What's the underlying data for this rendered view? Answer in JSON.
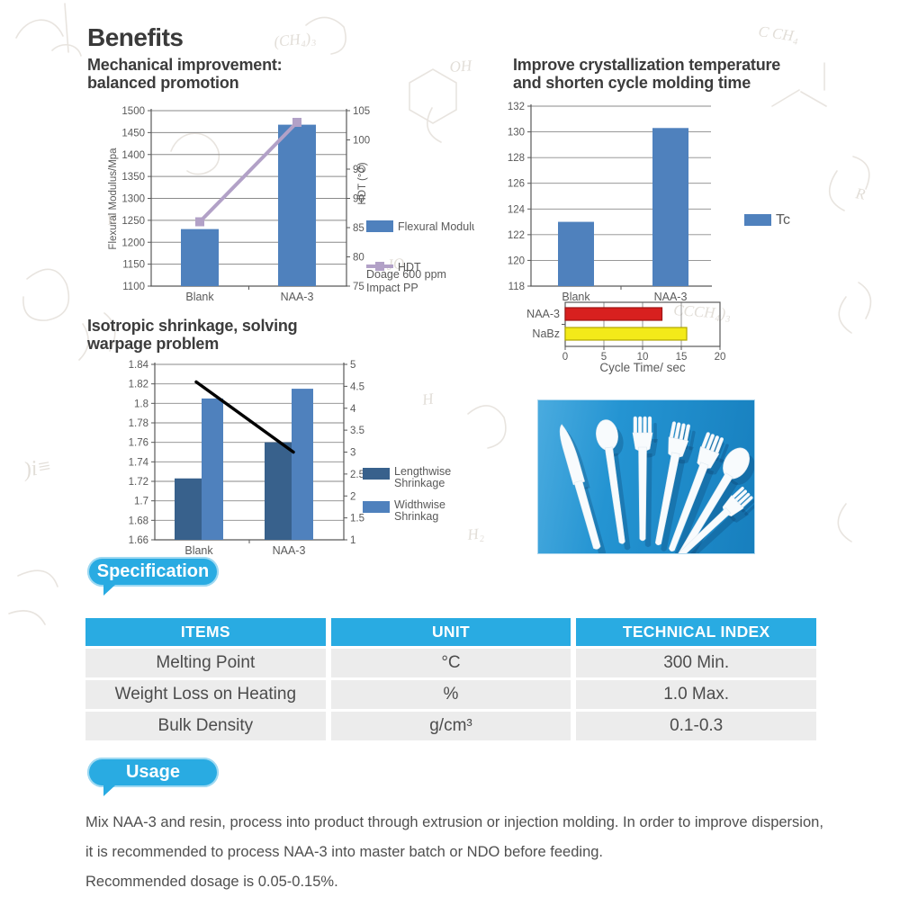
{
  "headings": {
    "benefits": "Benefits",
    "mech": [
      "Mechanical improvement:",
      "balanced promotion"
    ],
    "crystal": [
      "Improve crystallization temperature",
      "and shorten cycle molding time"
    ],
    "shrink": [
      "Isotropic shrinkage, solving",
      "warpage problem"
    ]
  },
  "colors": {
    "accent_cyan": "#29abe2",
    "bar_blue": "#4f81bd",
    "bar_dark_blue": "#38618c",
    "hdt_purple": "#b2a1c7",
    "red_bar": "#d8201f",
    "yellow_bar": "#f3ea19",
    "photo_blue": "#2191cf",
    "axis_gray": "#595959",
    "grid_gray": "#8a8a8a"
  },
  "chart_data": [
    {
      "id": "flexural",
      "type": "bar",
      "categories": [
        "Blank",
        "NAA-3"
      ],
      "bar_series": [
        {
          "name": "Flexural Modulus",
          "values": [
            1230,
            1468
          ],
          "color": "#4f81bd"
        }
      ],
      "line_series": [
        {
          "name": "HDT",
          "values": [
            86,
            103
          ],
          "axis": "right",
          "color": "#b2a1c7",
          "markers": true
        }
      ],
      "ylabel_left": "Flexural Modulus/Mpa",
      "ylabel_right": "HDT (°C)",
      "ylim_left": [
        1100,
        1500
      ],
      "ystep_left": 50,
      "ylim_right": [
        75,
        105
      ],
      "ystep_right": 5,
      "legend_note": [
        "Doage 600 ppm",
        "Impact PP"
      ],
      "grid": true,
      "legend_position": "right"
    },
    {
      "id": "tc",
      "type": "bar",
      "categories": [
        "Blank",
        "NAA-3"
      ],
      "bar_series": [
        {
          "name": "Tc",
          "values": [
            123,
            130.3
          ],
          "color": "#4f81bd"
        }
      ],
      "ylim_left": [
        118,
        132
      ],
      "ystep_left": 2,
      "grid": true,
      "legend_position": "right"
    },
    {
      "id": "shrinkage",
      "type": "bar",
      "categories": [
        "Blank",
        "NAA-3"
      ],
      "bar_series": [
        {
          "name": "Lengthwise Shrinkage",
          "values": [
            1.723,
            1.76
          ],
          "color": "#38618c"
        },
        {
          "name": "Widthwise Shrinkag",
          "values": [
            1.805,
            1.815
          ],
          "color": "#4f81bd"
        }
      ],
      "line_series": [
        {
          "name": "trend",
          "values": [
            4.6,
            3.0
          ],
          "axis": "right",
          "color": "#000000",
          "markers": false
        }
      ],
      "ylim_left": [
        1.66,
        1.84
      ],
      "ystep_left": 0.02,
      "ylim_right": [
        1,
        5
      ],
      "ystep_right": 0.5,
      "grid": true,
      "legend_position": "right"
    },
    {
      "id": "cycletime",
      "type": "hbar",
      "categories": [
        "NAA-3",
        "NaBz"
      ],
      "values": [
        12.5,
        15.7
      ],
      "bar_colors": [
        "#d8201f",
        "#f3ea19"
      ],
      "bar_borders": [
        "#9c1514",
        "#b0a600"
      ],
      "xlim": [
        0,
        20
      ],
      "xticks": [
        0,
        5,
        10,
        15,
        20
      ],
      "xlabel": "Cycle Time/ sec",
      "grid": true
    }
  ],
  "spec": {
    "badge": "Specification",
    "table": {
      "headers": [
        "ITEMS",
        "UNIT",
        "TECHNICAL INDEX"
      ],
      "rows": [
        [
          "Melting Point",
          "°C",
          "300 Min."
        ],
        [
          "Weight Loss on Heating",
          "%",
          "1.0 Max."
        ],
        [
          "Bulk Density",
          "g/cm³",
          "0.1-0.3"
        ]
      ]
    }
  },
  "usage": {
    "badge": "Usage",
    "lines": [
      "Mix NAA-3 and resin, process into product through extrusion or injection molding. In order to improve dispersion,",
      "it is recommended to process NAA-3 into master batch or NDO before feeding.",
      "Recommended dosage is 0.05-0.15%."
    ]
  }
}
